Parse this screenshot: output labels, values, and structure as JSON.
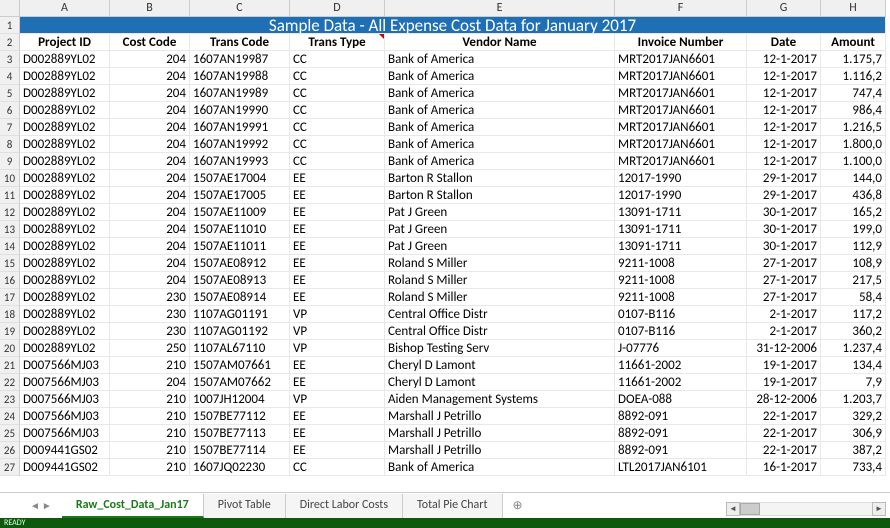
{
  "title_row": "Sample Data - All Expense Cost Data for January 2017",
  "col_letters": [
    "A",
    "B",
    "C",
    "D",
    "E",
    "F",
    "G",
    "H"
  ],
  "row_numbers": [
    "1",
    "2",
    "3",
    "4",
    "5",
    "6",
    "7",
    "8",
    "9",
    "10",
    "11",
    "12",
    "13",
    "14",
    "15",
    "16",
    "17",
    "18",
    "19",
    "20",
    "21",
    "22",
    "23",
    "24",
    "25",
    "26",
    "27"
  ],
  "headers": [
    "Project ID",
    "Cost Code",
    "Trans Code",
    "Trans Type",
    "Vendor Name",
    "Invoice Number",
    "Date",
    "Amount"
  ],
  "header_with_note_index": 3,
  "rows": [
    [
      "D002889YL02",
      "204",
      "1607AN19987",
      "CC",
      "Bank of America",
      "MRT2017JAN6601",
      "12-1-2017",
      "1.175,7"
    ],
    [
      "D002889YL02",
      "204",
      "1607AN19988",
      "CC",
      "Bank of America",
      "MRT2017JAN6601",
      "12-1-2017",
      "1.116,2"
    ],
    [
      "D002889YL02",
      "204",
      "1607AN19989",
      "CC",
      "Bank of America",
      "MRT2017JAN6601",
      "12-1-2017",
      "747,4"
    ],
    [
      "D002889YL02",
      "204",
      "1607AN19990",
      "CC",
      "Bank of America",
      "MRT2017JAN6601",
      "12-1-2017",
      "986,4"
    ],
    [
      "D002889YL02",
      "204",
      "1607AN19991",
      "CC",
      "Bank of America",
      "MRT2017JAN6601",
      "12-1-2017",
      "1.216,5"
    ],
    [
      "D002889YL02",
      "204",
      "1607AN19992",
      "CC",
      "Bank of America",
      "MRT2017JAN6601",
      "12-1-2017",
      "1.800,0"
    ],
    [
      "D002889YL02",
      "204",
      "1607AN19993",
      "CC",
      "Bank of America",
      "MRT2017JAN6601",
      "12-1-2017",
      "1.100,0"
    ],
    [
      "D002889YL02",
      "204",
      "1507AE17004",
      "EE",
      "Barton R Stallon",
      "12017-1990",
      "29-1-2017",
      "144,0"
    ],
    [
      "D002889YL02",
      "204",
      "1507AE17005",
      "EE",
      "Barton R Stallon",
      "12017-1990",
      "29-1-2017",
      "436,8"
    ],
    [
      "D002889YL02",
      "204",
      "1507AE11009",
      "EE",
      "Pat J Green",
      "13091-1711",
      "30-1-2017",
      "165,2"
    ],
    [
      "D002889YL02",
      "204",
      "1507AE11010",
      "EE",
      "Pat J Green",
      "13091-1711",
      "30-1-2017",
      "199,0"
    ],
    [
      "D002889YL02",
      "204",
      "1507AE11011",
      "EE",
      "Pat J Green",
      "13091-1711",
      "30-1-2017",
      "112,9"
    ],
    [
      "D002889YL02",
      "204",
      "1507AE08912",
      "EE",
      "Roland S Miller",
      "9211-1008",
      "27-1-2017",
      "108,9"
    ],
    [
      "D002889YL02",
      "204",
      "1507AE08913",
      "EE",
      "Roland S Miller",
      "9211-1008",
      "27-1-2017",
      "217,5"
    ],
    [
      "D002889YL02",
      "230",
      "1507AE08914",
      "EE",
      "Roland S Miller",
      "9211-1008",
      "27-1-2017",
      "58,4"
    ],
    [
      "D002889YL02",
      "230",
      "1107AG01191",
      "VP",
      "Central Office Distr",
      "0107-B116",
      "2-1-2017",
      "117,2"
    ],
    [
      "D002889YL02",
      "230",
      "1107AG01192",
      "VP",
      "Central Office Distr",
      "0107-B116",
      "2-1-2017",
      "360,2"
    ],
    [
      "D002889YL02",
      "250",
      "1107AL67110",
      "VP",
      "Bishop Testing Serv",
      "J-07776",
      "31-12-2006",
      "1.237,4"
    ],
    [
      "D007566MJ03",
      "210",
      "1507AM07661",
      "EE",
      "Cheryl D Lamont",
      "11661-2002",
      "19-1-2017",
      "134,4"
    ],
    [
      "D007566MJ03",
      "204",
      "1507AM07662",
      "EE",
      "Cheryl D Lamont",
      "11661-2002",
      "19-1-2017",
      "7,9"
    ],
    [
      "D007566MJ03",
      "210",
      "1007JH12004",
      "VP",
      "Aiden Management Systems",
      "DOEA-088",
      "28-12-2006",
      "1.203,7"
    ],
    [
      "D007566MJ03",
      "210",
      "1507BE77112",
      "EE",
      "Marshall J Petrillo",
      "8892-091",
      "22-1-2017",
      "329,2"
    ],
    [
      "D007566MJ03",
      "210",
      "1507BE77113",
      "EE",
      "Marshall J Petrillo",
      "8892-091",
      "22-1-2017",
      "306,9"
    ],
    [
      "D009441GS02",
      "210",
      "1507BE77114",
      "EE",
      "Marshall J Petrillo",
      "8892-091",
      "22-1-2017",
      "387,2"
    ],
    [
      "D009441GS02",
      "210",
      "1607JQ02230",
      "CC",
      "Bank of America",
      "LTL2017JAN6101",
      "16-1-2017",
      "733,4"
    ]
  ],
  "col_align": [
    "txt",
    "num",
    "txt",
    "txt",
    "txt",
    "txt",
    "num",
    "num"
  ],
  "tabs": [
    "Raw_Cost_Data_Jan17",
    "Pivot Table",
    "Direct Labor Costs",
    "Total Pie Chart"
  ],
  "active_tab_index": 0,
  "status_text": "READY",
  "colors": {
    "title_bg": "#1f6fb5",
    "active_tab_underline": "#1a7a1a",
    "statusbar_bg": "#0d5a0d"
  }
}
